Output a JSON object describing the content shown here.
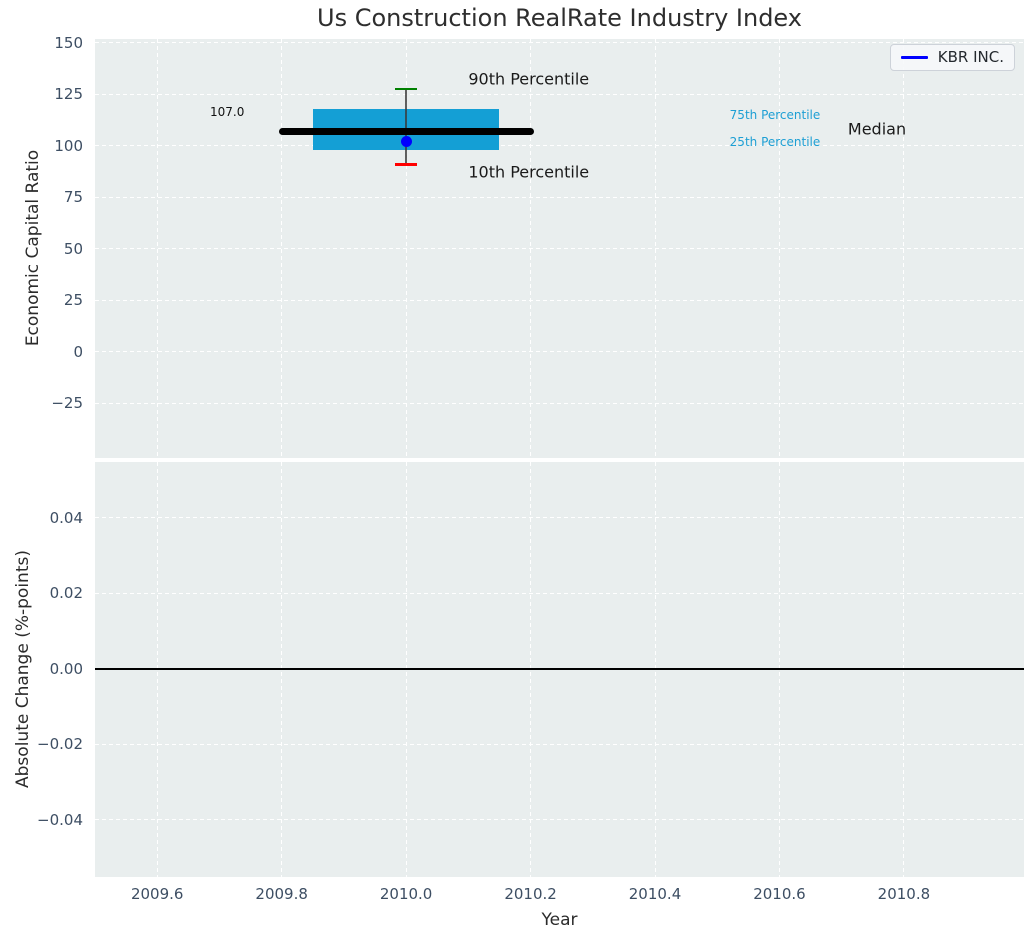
{
  "title": "Us Construction RealRate Industry Index",
  "legend": {
    "label": "KBR INC.",
    "line_color": "#0000ff",
    "position": "upper right"
  },
  "x_axis": {
    "label": "Year",
    "xlim": [
      2009.5,
      2010.993
    ],
    "ticks": [
      {
        "value": 2009.6,
        "label": "2009.6"
      },
      {
        "value": 2009.8,
        "label": "2009.8"
      },
      {
        "value": 2010.0,
        "label": "2010.0"
      },
      {
        "value": 2010.2,
        "label": "2010.2"
      },
      {
        "value": 2010.4,
        "label": "2010.4"
      },
      {
        "value": 2010.6,
        "label": "2010.6"
      },
      {
        "value": 2010.8,
        "label": "2010.8"
      }
    ]
  },
  "chart_data": [
    {
      "type": "box",
      "subplot": "industry-percentile-index",
      "ylabel": "Economic Capital Ratio",
      "ylim": [
        -51.6,
        151.8
      ],
      "grid": true,
      "legend_position": "upper right",
      "yticks": [
        {
          "value": 150,
          "label": "150"
        },
        {
          "value": 125,
          "label": "125"
        },
        {
          "value": 100,
          "label": "100"
        },
        {
          "value": 75,
          "label": "75"
        },
        {
          "value": 50,
          "label": "50"
        },
        {
          "value": 25,
          "label": "25"
        },
        {
          "value": 0,
          "label": "0"
        },
        {
          "value": -25,
          "label": "−25"
        }
      ],
      "box": {
        "x_center": 2010.0,
        "box_x_left": 2009.85,
        "box_x_right": 2010.15,
        "median_x_left": 2009.795,
        "median_x_right": 2010.205,
        "p10": 91.0,
        "p25": 98.0,
        "median": 107.0,
        "p75": 118.0,
        "p90": 127.5,
        "median_value_label": "107.0"
      },
      "series": [
        {
          "name": "KBR INC.",
          "x": 2010.0,
          "y": 102.0,
          "marker": "circle",
          "color": "#0000ff"
        }
      ],
      "annotations": [
        {
          "text": "90th Percentile",
          "x": 2010.1,
          "y": 132.5,
          "size": 16,
          "color": "#1a1a1a",
          "anchor": "left"
        },
        {
          "text": "10th Percentile",
          "x": 2010.1,
          "y": 87.3,
          "size": 16,
          "color": "#1a1a1a",
          "anchor": "left"
        },
        {
          "text": "107.0",
          "x": 2009.74,
          "y": 116.5,
          "size": 12,
          "color": "#111111",
          "anchor": "right"
        },
        {
          "text": "75th Percentile",
          "x": 2010.52,
          "y": 115.0,
          "size": 12,
          "color": "#1d9fd4",
          "anchor": "left"
        },
        {
          "text": "25th Percentile",
          "x": 2010.52,
          "y": 102.0,
          "size": 12,
          "color": "#1d9fd4",
          "anchor": "left"
        },
        {
          "text": "Median",
          "x": 2010.71,
          "y": 108.0,
          "size": 16,
          "color": "#1a1a1a",
          "anchor": "left"
        }
      ]
    },
    {
      "type": "line",
      "subplot": "absolute-change",
      "ylabel": "Absolute Change (%-points)",
      "ylim": [
        -0.0552,
        0.0548
      ],
      "grid": true,
      "yticks": [
        {
          "value": 0.04,
          "label": "0.04"
        },
        {
          "value": 0.02,
          "label": "0.02"
        },
        {
          "value": 0.0,
          "label": "0.00"
        },
        {
          "value": -0.02,
          "label": "−0.02"
        },
        {
          "value": -0.04,
          "label": "−0.04"
        }
      ],
      "zero_line": 0.0,
      "series": []
    }
  ],
  "colors": {
    "plot_background": "#e9eeee",
    "gridline": "#ffffff",
    "box_fill": "#149fd5",
    "whisker": "#3a3a3a",
    "cap_90th": "#008000",
    "cap_10th": "#ff0000",
    "median_line": "#000000",
    "company_point": "#0000ff",
    "zero_line": "#000000",
    "tick_label": "#3d4e63",
    "axis_label": "#2b2b2b",
    "title": "#2e2e2e",
    "percentile_label": "#1d9fd4"
  }
}
